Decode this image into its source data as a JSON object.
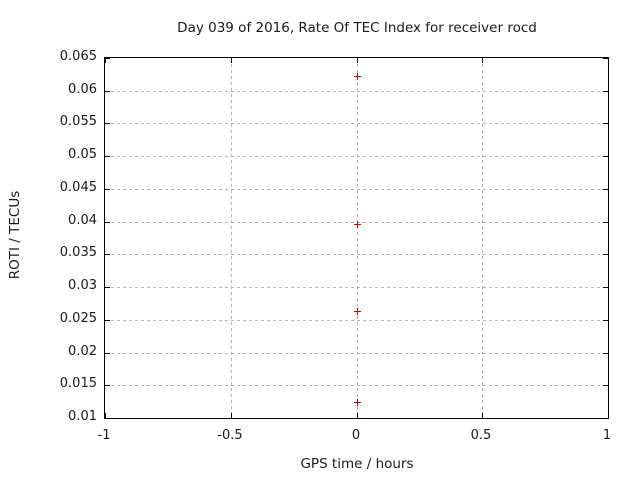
{
  "figure": {
    "title": "Day 039 of 2016, Rate Of TEC Index for receiver rocd",
    "xlabel": "GPS time / hours",
    "ylabel": "ROTI / TECUs"
  },
  "chart_data": {
    "type": "scatter",
    "title": "Day 039 of 2016, Rate Of TEC Index for receiver rocd",
    "xlabel": "GPS time / hours",
    "ylabel": "ROTI / TECUs",
    "xlim": [
      -1,
      1
    ],
    "ylim": [
      0.01,
      0.065
    ],
    "xticks": [
      -1,
      -0.5,
      0,
      0.5,
      1
    ],
    "xtick_labels": [
      "-1",
      "-0.5",
      "0",
      "0.5",
      "1"
    ],
    "yticks": [
      0.01,
      0.015,
      0.02,
      0.025,
      0.03,
      0.035,
      0.04,
      0.045,
      0.05,
      0.055,
      0.06,
      0.065
    ],
    "ytick_labels": [
      "0.01",
      "0.015",
      "0.02",
      "0.025",
      "0.03",
      "0.035",
      "0.04",
      "0.045",
      "0.05",
      "0.055",
      "0.06",
      "0.065"
    ],
    "grid": true,
    "legend_position": "none",
    "marker_style": "plus",
    "marker_color": "#cc0000",
    "grid_color": "#b5b5b5",
    "border_color": "#000000",
    "series": [
      {
        "name": "ROTI",
        "x": [
          0,
          0,
          0,
          0
        ],
        "y": [
          0.0623,
          0.0396,
          0.0263,
          0.0125
        ]
      }
    ]
  }
}
